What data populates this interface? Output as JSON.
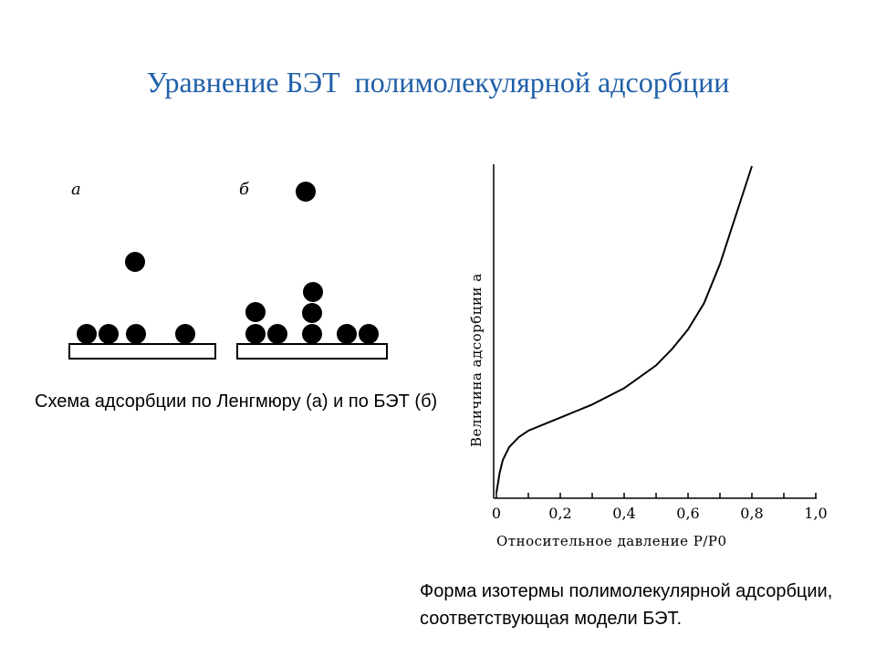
{
  "slide": {
    "title": "Уравнение БЭТ  полимолекулярной адсорбции",
    "caption_left": "Схема  адсорбции по Ленгмюру (а)  и по БЭТ (б)",
    "caption_right": "Форма изотермы полимолекулярной адсорбции, соответствующая модели БЭТ."
  },
  "scheme": {
    "label_a": "а",
    "label_b": "б"
  },
  "chart_data": {
    "type": "line",
    "title": "",
    "xlabel": "Относительное давление P/P0",
    "ylabel": "Величина адсорбции a",
    "x_ticks": [
      "0",
      "0,2",
      "0,4",
      "0,6",
      "0,8",
      "1,0"
    ],
    "xlim": [
      0,
      1.0
    ],
    "grid": false,
    "series": [
      {
        "x": [
          0.0,
          0.005,
          0.01,
          0.02,
          0.04,
          0.07,
          0.1,
          0.15,
          0.2,
          0.25,
          0.3,
          0.35,
          0.4,
          0.45,
          0.5,
          0.55,
          0.6,
          0.65,
          0.7,
          0.72,
          0.74,
          0.76,
          0.78,
          0.8
        ],
        "y": [
          0.0,
          0.03,
          0.06,
          0.1,
          0.14,
          0.17,
          0.19,
          0.21,
          0.23,
          0.25,
          0.27,
          0.295,
          0.32,
          0.355,
          0.39,
          0.44,
          0.5,
          0.58,
          0.7,
          0.76,
          0.82,
          0.88,
          0.94,
          1.0
        ]
      }
    ]
  }
}
